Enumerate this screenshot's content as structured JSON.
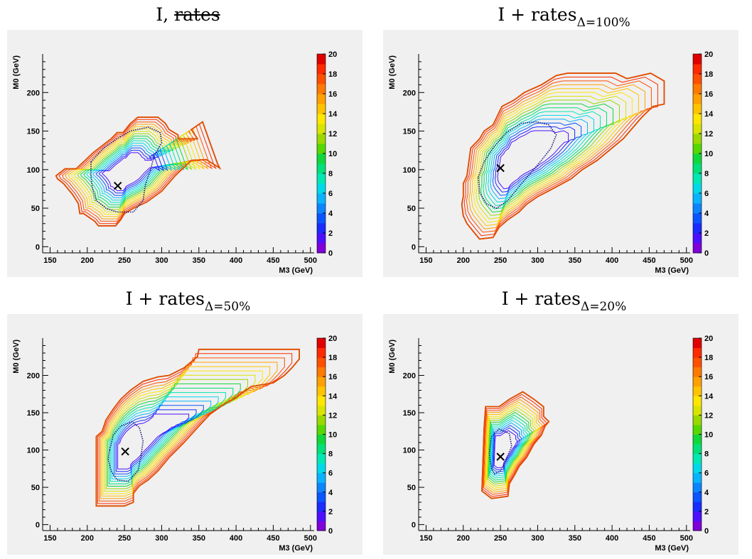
{
  "chart_data": [
    {
      "type": "contour",
      "title": {
        "prefix": "I, ",
        "struck": "rates",
        "subscript": ""
      },
      "xlabel": "M3 (GeV)",
      "ylabel": "M0 (GeV)",
      "xlim": [
        140,
        505
      ],
      "ylim": [
        -8,
        250
      ],
      "xticks": [
        150,
        200,
        250,
        300,
        350,
        400,
        450,
        500
      ],
      "yticks": [
        0,
        50,
        100,
        150,
        200
      ],
      "colorbar": {
        "range": [
          0,
          20
        ],
        "ticks": [
          0,
          2,
          4,
          6,
          8,
          10,
          12,
          14,
          16,
          18,
          20
        ]
      },
      "best_fit": [
        241,
        79
      ],
      "boundary": [
        [
          158,
          92
        ],
        [
          170,
          101
        ],
        [
          185,
          101
        ],
        [
          208,
          122
        ],
        [
          232,
          140
        ],
        [
          240,
          148
        ],
        [
          248,
          148
        ],
        [
          258,
          160
        ],
        [
          268,
          168
        ],
        [
          295,
          168
        ],
        [
          305,
          160
        ],
        [
          310,
          152
        ],
        [
          322,
          145
        ],
        [
          322,
          140
        ],
        [
          348,
          140
        ],
        [
          340,
          152
        ],
        [
          355,
          162
        ],
        [
          375,
          108
        ],
        [
          378,
          102
        ],
        [
          360,
          113
        ],
        [
          340,
          112
        ],
        [
          318,
          92
        ],
        [
          300,
          72
        ],
        [
          280,
          58
        ],
        [
          262,
          50
        ],
        [
          250,
          43
        ],
        [
          245,
          35
        ],
        [
          238,
          27
        ],
        [
          215,
          27
        ],
        [
          210,
          33
        ],
        [
          195,
          43
        ],
        [
          190,
          43
        ],
        [
          188,
          56
        ],
        [
          180,
          68
        ],
        [
          168,
          82
        ],
        [
          160,
          88
        ]
      ],
      "inner_contour": [
        [
          205,
          110
        ],
        [
          222,
          128
        ],
        [
          240,
          140
        ],
        [
          258,
          150
        ],
        [
          282,
          155
        ],
        [
          298,
          148
        ],
        [
          300,
          135
        ],
        [
          290,
          118
        ],
        [
          285,
          100
        ],
        [
          278,
          80
        ],
        [
          275,
          60
        ],
        [
          268,
          52
        ],
        [
          262,
          45
        ],
        [
          240,
          45
        ],
        [
          225,
          50
        ],
        [
          212,
          60
        ],
        [
          207,
          75
        ],
        [
          205,
          92
        ]
      ]
    },
    {
      "type": "contour",
      "title": {
        "prefix": "I + rates",
        "struck": "",
        "subscript": "Δ=100%"
      },
      "xlabel": "M3 (GeV)",
      "ylabel": "M0 (GeV)",
      "xlim": [
        140,
        505
      ],
      "ylim": [
        -8,
        250
      ],
      "xticks": [
        150,
        200,
        250,
        300,
        350,
        400,
        450,
        500
      ],
      "yticks": [
        0,
        50,
        100,
        150,
        200
      ],
      "colorbar": {
        "range": [
          0,
          20
        ],
        "ticks": [
          0,
          2,
          4,
          6,
          8,
          10,
          12,
          14,
          16,
          18,
          20
        ]
      },
      "best_fit": [
        250,
        102
      ],
      "boundary": [
        [
          200,
          82
        ],
        [
          205,
          92
        ],
        [
          210,
          128
        ],
        [
          222,
          140
        ],
        [
          228,
          150
        ],
        [
          240,
          158
        ],
        [
          245,
          168
        ],
        [
          252,
          182
        ],
        [
          268,
          190
        ],
        [
          282,
          200
        ],
        [
          305,
          210
        ],
        [
          325,
          222
        ],
        [
          340,
          225
        ],
        [
          405,
          225
        ],
        [
          420,
          218
        ],
        [
          452,
          225
        ],
        [
          470,
          215
        ],
        [
          470,
          185
        ],
        [
          455,
          182
        ],
        [
          440,
          168
        ],
        [
          415,
          140
        ],
        [
          400,
          128
        ],
        [
          380,
          112
        ],
        [
          360,
          100
        ],
        [
          345,
          88
        ],
        [
          320,
          75
        ],
        [
          300,
          65
        ],
        [
          285,
          55
        ],
        [
          275,
          45
        ],
        [
          260,
          35
        ],
        [
          248,
          25
        ],
        [
          240,
          12
        ],
        [
          222,
          10
        ],
        [
          215,
          18
        ],
        [
          205,
          30
        ],
        [
          200,
          40
        ],
        [
          198,
          55
        ],
        [
          200,
          65
        ]
      ],
      "inner_contour": [
        [
          220,
          90
        ],
        [
          228,
          110
        ],
        [
          240,
          128
        ],
        [
          258,
          148
        ],
        [
          278,
          160
        ],
        [
          298,
          162
        ],
        [
          315,
          158
        ],
        [
          325,
          145
        ],
        [
          318,
          128
        ],
        [
          305,
          112
        ],
        [
          290,
          95
        ],
        [
          275,
          78
        ],
        [
          260,
          60
        ],
        [
          245,
          50
        ],
        [
          232,
          55
        ],
        [
          222,
          70
        ]
      ]
    },
    {
      "type": "contour",
      "title": {
        "prefix": "I + rates",
        "struck": "",
        "subscript": "Δ=50%"
      },
      "xlabel": "M3 (GeV)",
      "ylabel": "M0 (GeV)",
      "xlim": [
        140,
        505
      ],
      "ylim": [
        -8,
        250
      ],
      "xticks": [
        150,
        200,
        250,
        300,
        350,
        400,
        450,
        500
      ],
      "yticks": [
        0,
        50,
        100,
        150,
        200
      ],
      "colorbar": {
        "range": [
          0,
          20
        ],
        "ticks": [
          0,
          2,
          4,
          6,
          8,
          10,
          12,
          14,
          16,
          18,
          20
        ]
      },
      "best_fit": [
        251,
        98
      ],
      "boundary": [
        [
          212,
          25
        ],
        [
          212,
          118
        ],
        [
          220,
          125
        ],
        [
          225,
          140
        ],
        [
          235,
          155
        ],
        [
          245,
          168
        ],
        [
          258,
          180
        ],
        [
          275,
          192
        ],
        [
          295,
          198
        ],
        [
          310,
          200
        ],
        [
          330,
          210
        ],
        [
          348,
          225
        ],
        [
          350,
          235
        ],
        [
          485,
          235
        ],
        [
          485,
          222
        ],
        [
          475,
          210
        ],
        [
          465,
          200
        ],
        [
          450,
          190
        ],
        [
          420,
          185
        ],
        [
          400,
          170
        ],
        [
          385,
          162
        ],
        [
          365,
          148
        ],
        [
          350,
          132
        ],
        [
          330,
          110
        ],
        [
          310,
          90
        ],
        [
          295,
          72
        ],
        [
          282,
          60
        ],
        [
          270,
          52
        ],
        [
          262,
          42
        ],
        [
          262,
          30
        ],
        [
          250,
          25
        ]
      ],
      "inner_contour": [
        [
          230,
          100
        ],
        [
          235,
          120
        ],
        [
          245,
          132
        ],
        [
          260,
          138
        ],
        [
          270,
          130
        ],
        [
          275,
          112
        ],
        [
          272,
          90
        ],
        [
          268,
          72
        ],
        [
          255,
          58
        ],
        [
          240,
          60
        ],
        [
          232,
          72
        ],
        [
          228,
          88
        ]
      ]
    },
    {
      "type": "contour",
      "title": {
        "prefix": "I + rates",
        "struck": "",
        "subscript": "Δ=20%"
      },
      "xlabel": "M3 (GeV)",
      "ylabel": "M0 (GeV)",
      "xlim": [
        140,
        505
      ],
      "ylim": [
        -8,
        250
      ],
      "xticks": [
        150,
        200,
        250,
        300,
        350,
        400,
        450,
        500
      ],
      "yticks": [
        0,
        50,
        100,
        150,
        200
      ],
      "colorbar": {
        "range": [
          0,
          20
        ],
        "ticks": [
          0,
          2,
          4,
          6,
          8,
          10,
          12,
          14,
          16,
          18,
          20
        ]
      },
      "best_fit": [
        250,
        91
      ],
      "boundary": [
        [
          225,
          45
        ],
        [
          228,
          130
        ],
        [
          230,
          158
        ],
        [
          248,
          158
        ],
        [
          262,
          168
        ],
        [
          280,
          178
        ],
        [
          295,
          168
        ],
        [
          308,
          158
        ],
        [
          308,
          145
        ],
        [
          315,
          138
        ],
        [
          310,
          132
        ],
        [
          305,
          120
        ],
        [
          295,
          108
        ],
        [
          285,
          90
        ],
        [
          275,
          78
        ],
        [
          268,
          65
        ],
        [
          262,
          55
        ],
        [
          260,
          38
        ],
        [
          238,
          35
        ]
      ],
      "inner_contour": [
        [
          238,
          75
        ],
        [
          235,
          95
        ],
        [
          238,
          118
        ],
        [
          248,
          128
        ],
        [
          262,
          122
        ],
        [
          265,
          105
        ],
        [
          258,
          88
        ],
        [
          250,
          72
        ],
        [
          242,
          68
        ]
      ]
    }
  ]
}
